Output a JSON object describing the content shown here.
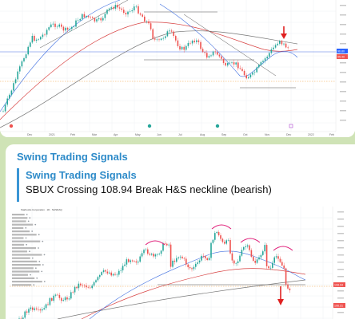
{
  "message_1": {
    "chart": {
      "x_ticks": [
        "Dec",
        "2021",
        "Feb",
        "Mar",
        "Apr",
        "May",
        "Jun",
        "Jul",
        "Aug",
        "Sep",
        "Oct",
        "Nov",
        "Dec",
        "2022",
        "Feb"
      ],
      "price_tags": [
        "96.80",
        "95.40"
      ],
      "colors": {
        "up": "#26a69a",
        "down": "#ef5350",
        "signal_arrow": "#e02020",
        "background": "#ffffff"
      },
      "icons": [
        "down-arrow-icon",
        "candlestick-icon"
      ]
    }
  },
  "message_2": {
    "sender": "Swing Trading Signals",
    "quote_sender": "Swing Trading Signals",
    "quote_text": "SBUX Crossing 108.94 Break H&S neckline (bearish)",
    "chart": {
      "header": "Starbucks Corporation · 1D · NASDAQ",
      "price_tags": [
        "108.94",
        "106.21"
      ],
      "colors": {
        "up": "#26a69a",
        "down": "#ef5350",
        "shoulder_arcs": "#e0207a",
        "signal_arrow": "#e02020",
        "neckline": "#555555"
      },
      "icons": [
        "down-arrow-icon",
        "head-and-shoulders-arc-icon"
      ]
    }
  }
}
